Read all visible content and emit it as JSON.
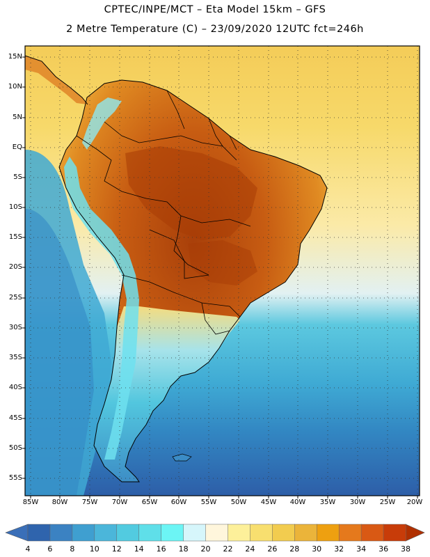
{
  "title_line1": "CPTEC/INPE/MCT –  Eta Model 15km – GFS",
  "title_line2": "2 Metre Temperature (C) – 23/09/2020 12UTC fct=246h",
  "lat_labels": [
    "15N",
    "10N",
    "5N",
    "EQ",
    "5S",
    "10S",
    "15S",
    "20S",
    "25S",
    "30S",
    "35S",
    "40S",
    "45S",
    "50S",
    "55S"
  ],
  "lon_labels": [
    "85W",
    "80W",
    "75W",
    "70W",
    "65W",
    "60W",
    "55W",
    "50W",
    "45W",
    "40W",
    "35W",
    "30W",
    "25W",
    "20W"
  ],
  "colorbar": {
    "labels": [
      "4",
      "6",
      "8",
      "10",
      "12",
      "14",
      "16",
      "18",
      "20",
      "22",
      "24",
      "26",
      "28",
      "30",
      "32",
      "34",
      "36",
      "38"
    ],
    "colors": [
      "#3a6fb8",
      "#2f64ad",
      "#3b82c2",
      "#3f9fd0",
      "#4bb6da",
      "#52cbe0",
      "#5fdfe9",
      "#6cf5f5",
      "#d6f6fb",
      "#fff6dc",
      "#fdf09a",
      "#f8df6f",
      "#f2cc4f",
      "#ebb43a",
      "#eea010",
      "#e5791c",
      "#d95914",
      "#c83c09",
      "#a02800"
    ],
    "low_color": "#3a6fb8",
    "high_color": "#b03000"
  },
  "colors": {
    "ocean_warm": "#f5cf55",
    "ocean_mid": "#fae8a0",
    "ocean_cool": "#4fc2dd",
    "ocean_cold": "#3b8cc6",
    "ocean_polar": "#2f5fa8",
    "land_hot": "#b6470c",
    "land_warm": "#d9711a",
    "land_mild": "#f1c04a",
    "andes": "#6fe3ef"
  }
}
